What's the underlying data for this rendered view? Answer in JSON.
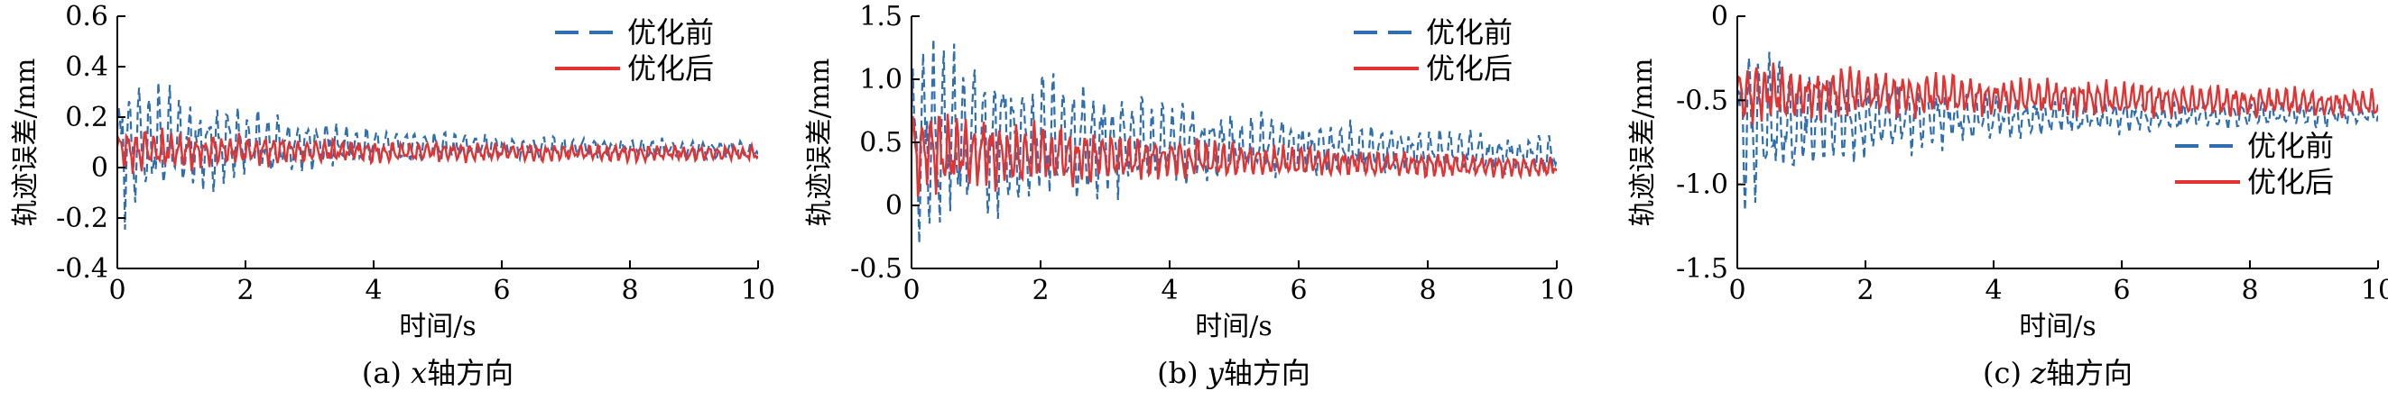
{
  "colors": {
    "before": "#2f6fb0",
    "after": "#e33232",
    "axis": "#000000"
  },
  "chart_data": [
    {
      "type": "line",
      "caption_prefix": "(a) ",
      "caption_var": "x",
      "caption_suffix": "轴方向",
      "xlabel": "时间/s",
      "ylabel": "轨迹误差/mm",
      "xlim": [
        0,
        10
      ],
      "ylim": [
        -0.4,
        0.6
      ],
      "xticks": [
        "0",
        "2",
        "4",
        "6",
        "8",
        "10"
      ],
      "yticks": [
        "-0.4",
        "-0.2",
        "0",
        "0.2",
        "0.4",
        "0.6"
      ],
      "grid": false,
      "legend_position": "top-right",
      "series": [
        {
          "name": "优化前",
          "style": "dashed",
          "center_start": 0.1,
          "center_end": 0.07,
          "amp_start": 0.34,
          "amp_end": 0.035,
          "amp_tau": 2.0,
          "freq_hz": 6.5,
          "seed": 11
        },
        {
          "name": "优化后",
          "style": "solid",
          "center_start": 0.07,
          "center_end": 0.055,
          "amp_start": 0.1,
          "amp_end": 0.028,
          "amp_tau": 3.0,
          "freq_hz": 7.5,
          "seed": 23
        }
      ]
    },
    {
      "type": "line",
      "caption_prefix": "(b) ",
      "caption_var": "y",
      "caption_suffix": "轴方向",
      "xlabel": "时间/s",
      "ylabel": "轨迹误差/mm",
      "xlim": [
        0,
        10
      ],
      "ylim": [
        -0.5,
        1.5
      ],
      "xticks": [
        "0",
        "2",
        "4",
        "6",
        "8",
        "10"
      ],
      "yticks": [
        "-0.5",
        "0",
        "0.5",
        "1.0",
        "1.5"
      ],
      "grid": false,
      "legend_position": "top-right",
      "series": [
        {
          "name": "优化前",
          "style": "dashed",
          "center_start": 0.55,
          "center_end": 0.4,
          "amp_start": 0.9,
          "amp_end": 0.1,
          "amp_tau": 3.5,
          "freq_hz": 6.5,
          "seed": 37
        },
        {
          "name": "优化后",
          "style": "solid",
          "center_start": 0.42,
          "center_end": 0.3,
          "amp_start": 0.38,
          "amp_end": 0.06,
          "amp_tau": 4.0,
          "freq_hz": 7.5,
          "seed": 41
        }
      ]
    },
    {
      "type": "line",
      "caption_prefix": "(c) ",
      "caption_var": "z",
      "caption_suffix": "轴方向",
      "xlabel": "时间/s",
      "ylabel": "轨迹误差/mm",
      "xlim": [
        0,
        10
      ],
      "ylim": [
        -1.5,
        0
      ],
      "xticks": [
        "0",
        "2",
        "4",
        "6",
        "8",
        "10"
      ],
      "yticks": [
        "-1.5",
        "-1.0",
        "-0.5",
        "0"
      ],
      "grid": false,
      "legend_position": "middle-right",
      "series": [
        {
          "name": "优化前",
          "style": "dashed",
          "center_start": -0.62,
          "center_end": -0.58,
          "amp_start": 0.55,
          "amp_end": 0.07,
          "amp_tau": 2.2,
          "freq_hz": 6.5,
          "seed": 53
        },
        {
          "name": "优化后",
          "style": "solid",
          "center_start": -0.45,
          "center_end": -0.52,
          "amp_start": 0.2,
          "amp_end": 0.07,
          "amp_tau": 5.0,
          "freq_hz": 7.5,
          "seed": 67
        }
      ]
    }
  ]
}
